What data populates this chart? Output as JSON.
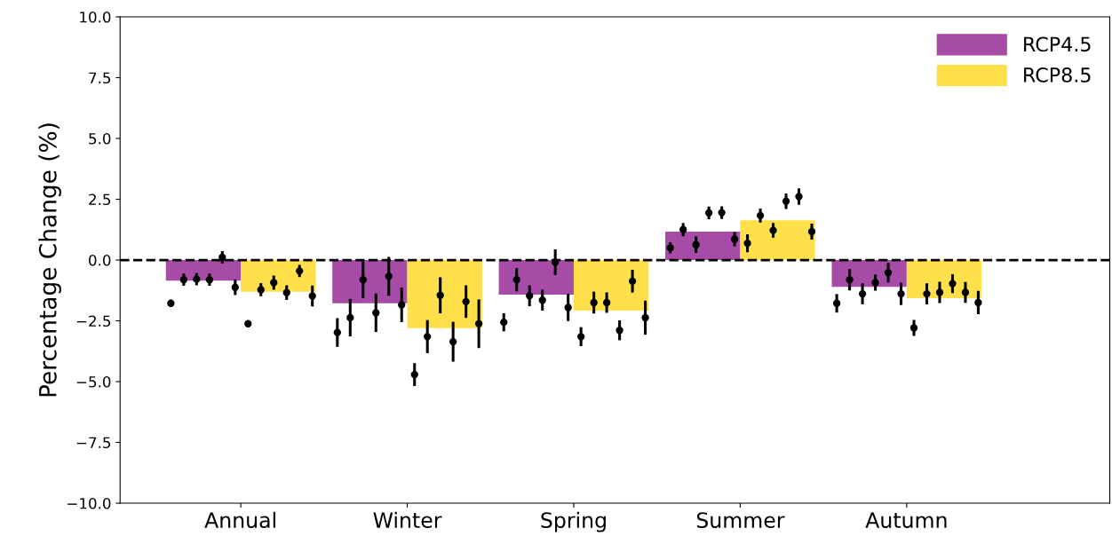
{
  "chart_data": {
    "type": "bar",
    "ylabel": "Percentage Change (%)",
    "categories": [
      "Annual",
      "Winter",
      "Spring",
      "Summer",
      "Autumn"
    ],
    "ylim": [
      -10.0,
      10.0
    ],
    "yticks": [
      {
        "value": -10,
        "label": "−10.0"
      },
      {
        "value": -7.5,
        "label": "−7.5"
      },
      {
        "value": -5,
        "label": "−5.0"
      },
      {
        "value": -2.5,
        "label": "−2.5"
      },
      {
        "value": 0,
        "label": "0.0"
      },
      {
        "value": 2.5,
        "label": "2.5"
      },
      {
        "value": 5,
        "label": "5.0"
      },
      {
        "value": 7.5,
        "label": "7.5"
      },
      {
        "value": 10,
        "label": "10.0"
      }
    ],
    "grid": false,
    "legend": "top right",
    "ref_lines": [
      {
        "axis": "y",
        "value": 0,
        "color": "#000000",
        "line_style": "dashed"
      }
    ],
    "series": [
      {
        "name": "RCP4.5",
        "color": "#a64ca6",
        "values": [
          -0.85,
          -1.78,
          -1.42,
          1.17,
          -1.1
        ]
      },
      {
        "name": "RCP8.5",
        "color": "#ffe04a",
        "values": [
          -1.3,
          -2.8,
          -2.08,
          1.63,
          -1.57
        ]
      },
      {
        "type": "scatter",
        "color": "#000000",
        "marker": "circle",
        "x": [
          "Annual",
          "Winter",
          "Spring",
          "Summer",
          "Autumn"
        ],
        "values": [
          -1.78,
          -2.98,
          -2.56,
          0.5,
          -1.78
        ],
        "errors": [
          0.15,
          0.59,
          0.37,
          0.23,
          0.38
        ]
      },
      {
        "type": "scatter",
        "color": "#000000",
        "marker": "circle",
        "x": [
          "Annual",
          "Winter",
          "Spring",
          "Summer",
          "Autumn"
        ],
        "values": [
          -0.81,
          -2.37,
          -0.81,
          1.25,
          -0.81
        ],
        "errors": [
          0.25,
          0.77,
          0.48,
          0.27,
          0.44
        ]
      },
      {
        "type": "scatter",
        "color": "#000000",
        "marker": "circle",
        "x": [
          "Annual",
          "Winter",
          "Spring",
          "Summer",
          "Autumn"
        ],
        "values": [
          -0.79,
          -0.81,
          -1.47,
          0.63,
          -1.39
        ],
        "errors": [
          0.25,
          0.76,
          0.43,
          0.34,
          0.43
        ]
      },
      {
        "type": "scatter",
        "color": "#000000",
        "marker": "circle",
        "x": [
          "Annual",
          "Winter",
          "Spring",
          "Summer",
          "Autumn"
        ],
        "values": [
          -0.81,
          -2.17,
          -1.65,
          1.94,
          -0.93
        ],
        "errors": [
          0.25,
          0.79,
          0.43,
          0.26,
          0.33
        ]
      },
      {
        "type": "scatter",
        "color": "#000000",
        "marker": "circle",
        "x": [
          "Annual",
          "Winter",
          "Spring",
          "Summer",
          "Autumn"
        ],
        "values": [
          0.11,
          -0.67,
          -0.09,
          1.95,
          -0.52
        ],
        "errors": [
          0.26,
          0.8,
          0.53,
          0.26,
          0.4
        ]
      },
      {
        "type": "scatter",
        "color": "#000000",
        "marker": "circle",
        "x": [
          "Annual",
          "Winter",
          "Spring",
          "Summer",
          "Autumn"
        ],
        "values": [
          -1.12,
          -1.84,
          -1.95,
          0.86,
          -1.39
        ],
        "errors": [
          0.32,
          0.71,
          0.56,
          0.29,
          0.46
        ]
      },
      {
        "type": "scatter",
        "color": "#000000",
        "marker": "circle",
        "x": [
          "Annual",
          "Winter",
          "Spring",
          "Summer",
          "Autumn"
        ],
        "values": [
          -2.62,
          -4.71,
          -3.15,
          0.69,
          -2.79
        ],
        "errors": [
          0.15,
          0.47,
          0.39,
          0.37,
          0.33
        ]
      },
      {
        "type": "scatter",
        "color": "#000000",
        "marker": "circle",
        "x": [
          "Annual",
          "Winter",
          "Spring",
          "Summer",
          "Autumn"
        ],
        "values": [
          -1.22,
          -3.15,
          -1.75,
          1.83,
          -1.39
        ],
        "errors": [
          0.27,
          0.68,
          0.45,
          0.29,
          0.43
        ]
      },
      {
        "type": "scatter",
        "color": "#000000",
        "marker": "circle",
        "x": [
          "Annual",
          "Winter",
          "Spring",
          "Summer",
          "Autumn"
        ],
        "values": [
          -0.93,
          -1.45,
          -1.75,
          1.22,
          -1.33
        ],
        "errors": [
          0.29,
          0.74,
          0.42,
          0.3,
          0.44
        ]
      },
      {
        "type": "scatter",
        "color": "#000000",
        "marker": "circle",
        "x": [
          "Annual",
          "Winter",
          "Spring",
          "Summer",
          "Autumn"
        ],
        "values": [
          -1.34,
          -3.36,
          -2.89,
          2.42,
          -0.97
        ],
        "errors": [
          0.3,
          0.82,
          0.41,
          0.32,
          0.39
        ]
      },
      {
        "type": "scatter",
        "color": "#000000",
        "marker": "circle",
        "x": [
          "Annual",
          "Winter",
          "Spring",
          "Summer",
          "Autumn"
        ],
        "values": [
          -0.45,
          -1.71,
          -0.87,
          2.61,
          -1.33
        ],
        "errors": [
          0.25,
          0.67,
          0.47,
          0.34,
          0.43
        ]
      },
      {
        "type": "scatter",
        "color": "#000000",
        "marker": "circle",
        "x": [
          "Annual",
          "Winter",
          "Spring",
          "Summer",
          "Autumn"
        ],
        "values": [
          -1.48,
          -2.62,
          -2.37,
          1.17,
          -1.75
        ],
        "errors": [
          0.43,
          1.0,
          0.7,
          0.33,
          0.48
        ]
      }
    ]
  }
}
